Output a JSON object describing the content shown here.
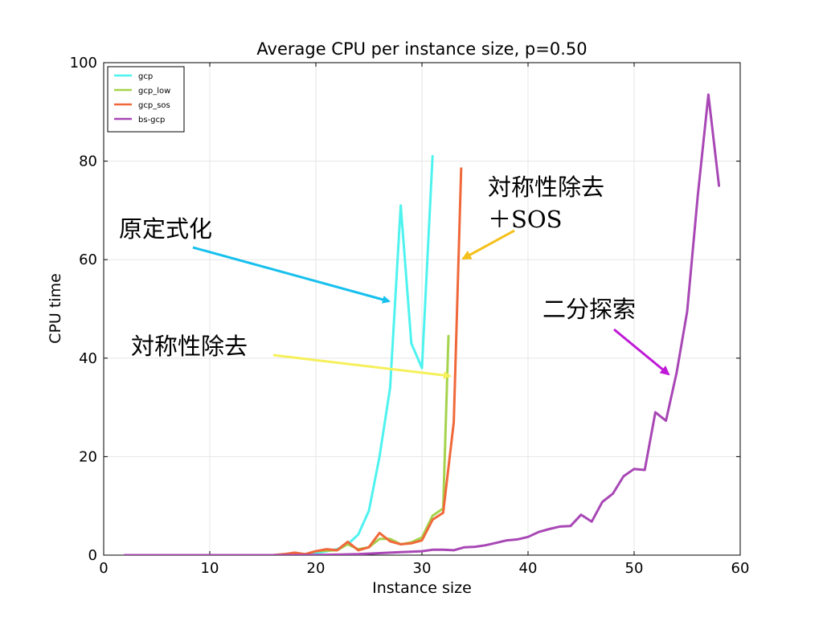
{
  "chart_data": {
    "type": "line",
    "title": "Average CPU per instance size, p=0.50",
    "xlabel": "Instance size",
    "ylabel": "CPU time",
    "xlim": [
      0,
      60
    ],
    "ylim": [
      0,
      100
    ],
    "xticks": [
      "0",
      "10",
      "20",
      "30",
      "40",
      "50",
      "60"
    ],
    "yticks": [
      "0",
      "20",
      "40",
      "60",
      "80",
      "100"
    ],
    "grid": true,
    "legend_position": "top-left",
    "series": [
      {
        "name": "gcp",
        "color": "#4ef3ef",
        "x": [
          2,
          4,
          6,
          8,
          10,
          12,
          14,
          16,
          18,
          19,
          20,
          21,
          22,
          23,
          24,
          25,
          26,
          27,
          28,
          29,
          30,
          31
        ],
        "y": [
          0,
          0,
          0,
          0,
          0,
          0,
          0,
          0,
          0.1,
          0.2,
          0.4,
          0.8,
          1.2,
          2.2,
          4.2,
          9,
          20,
          34,
          71,
          43,
          38,
          81
        ]
      },
      {
        "name": "gcp_low",
        "color": "#a5d34b",
        "x": [
          2,
          4,
          6,
          8,
          10,
          12,
          14,
          16,
          17,
          18,
          19,
          20,
          21,
          22,
          23,
          24,
          25,
          26,
          27,
          28,
          29,
          30,
          31,
          32,
          32.5
        ],
        "y": [
          0,
          0,
          0,
          0,
          0,
          0,
          0,
          0,
          0.2,
          0.4,
          0.2,
          0.8,
          0.9,
          1.0,
          2.2,
          1.2,
          1.6,
          3.3,
          3.3,
          2.2,
          2.6,
          3.6,
          8,
          9.5,
          44.5
        ]
      },
      {
        "name": "gcp_sos",
        "color": "#f0683a",
        "x": [
          2,
          4,
          6,
          8,
          10,
          12,
          14,
          16,
          17,
          18,
          19,
          20,
          21,
          22,
          23,
          24,
          25,
          26,
          27,
          28,
          29,
          30,
          31,
          32,
          33,
          33.7
        ],
        "y": [
          0,
          0,
          0,
          0,
          0,
          0,
          0,
          0,
          0.2,
          0.5,
          0.2,
          0.8,
          1.2,
          1.0,
          2.7,
          1.0,
          1.6,
          4.5,
          2.8,
          2.2,
          2.4,
          3.0,
          7.2,
          8.6,
          27,
          78.5
        ]
      },
      {
        "name": "bs-gcp",
        "color": "#a847b5",
        "x": [
          2,
          6,
          10,
          14,
          18,
          20,
          22,
          24,
          26,
          28,
          30,
          31,
          32,
          33,
          34,
          35,
          36,
          37,
          38,
          39,
          40,
          41,
          42,
          43,
          44,
          45,
          46,
          47,
          48,
          49,
          50,
          51,
          52,
          53,
          54,
          55,
          56,
          57,
          58
        ],
        "y": [
          0,
          0,
          0,
          0,
          0,
          0.05,
          0.1,
          0.2,
          0.4,
          0.6,
          0.8,
          1.1,
          1.1,
          1.0,
          1.6,
          1.7,
          2.0,
          2.5,
          3.0,
          3.2,
          3.7,
          4.7,
          5.3,
          5.8,
          5.9,
          8.2,
          6.8,
          10.8,
          12.5,
          16,
          17.5,
          17.3,
          29,
          27.3,
          37,
          49.5,
          73,
          93.5,
          75
        ]
      }
    ],
    "annotations": [
      {
        "text": "原定式化",
        "color": "#17c0ee"
      },
      {
        "text": "対称性除去",
        "color": "#f5f05a"
      },
      {
        "text": "対称性除去",
        "text2": "＋SOS",
        "color": "#f5c01b"
      },
      {
        "text": "二分探索",
        "color": "#c018d8"
      }
    ]
  }
}
